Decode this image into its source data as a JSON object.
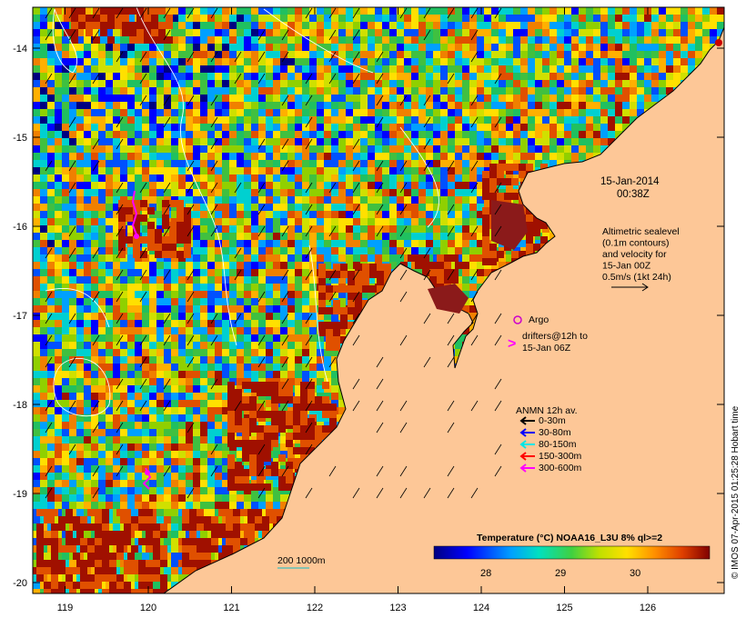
{
  "map": {
    "date_line1": "15-Jan-2014",
    "date_line2": "00:38Z",
    "altimetry_lines": [
      "Altimetric sealevel",
      "(0.1m contours)",
      "and velocity for",
      "15-Jan 00Z",
      "0.5m/s (1kt 24h)"
    ],
    "argo_label": "Argo",
    "drifters_lines": [
      "drifters@12h to",
      "15-Jan 06Z"
    ],
    "anmn_title": "ANMN 12h av.",
    "anmn_legend": [
      {
        "label": "0-30m",
        "color": "#000000"
      },
      {
        "label": "30-80m",
        "color": "#0000ff"
      },
      {
        "label": "80-150m",
        "color": "#00e5e5"
      },
      {
        "label": "150-300m",
        "color": "#ff0000"
      },
      {
        "label": "300-600m",
        "color": "#ff00ff"
      }
    ],
    "bathy_label": "200 1000m",
    "colorbar_title": "Temperature (°C) NOAA16_L3U 8% ql>=2",
    "colorbar_ticks": [
      "28",
      "29",
      "30"
    ],
    "credit": "© IMOS 07-Apr-2015 01:25:28 Hobart time",
    "x_ticks": [
      "119",
      "120",
      "121",
      "122",
      "123",
      "124",
      "125",
      "126"
    ],
    "y_ticks": [
      "-14",
      "-15",
      "-16",
      "-17",
      "-18",
      "-19",
      "-20"
    ],
    "colors": {
      "land": "#fdc797",
      "argo": "#cc00cc",
      "drifter": "#ff00ff",
      "contour": "#ffffff"
    }
  }
}
